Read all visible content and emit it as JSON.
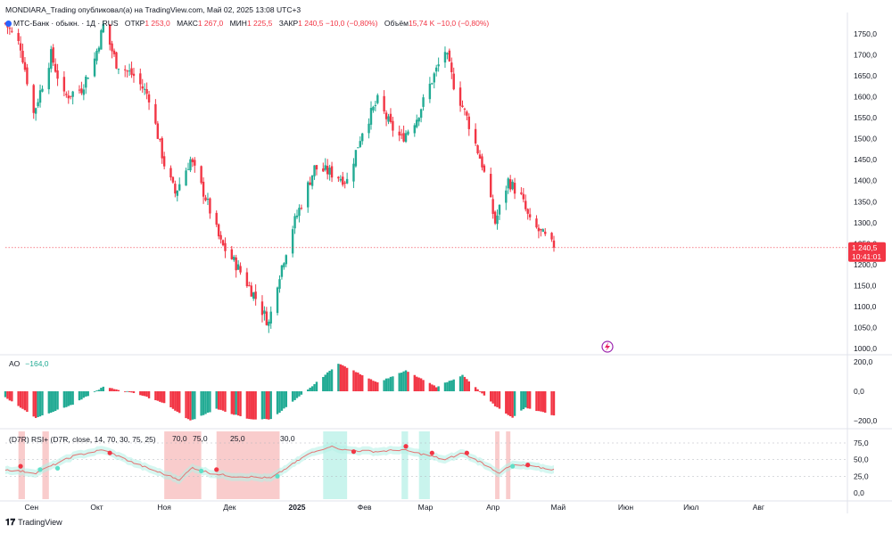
{
  "header": {
    "publisher_line": "MONDIARA_Trading опубликовал(а) на TradingView.com, Май 02, 2025 13:08 UTC+3"
  },
  "symbol": {
    "title": "МТС-Банк · обыкн. · 1Д · RUS",
    "open_label": "ОТКР",
    "open": "1 253,0",
    "high_label": "МАКС",
    "high": "1 267,0",
    "low_label": "МИН",
    "low": "1 225,5",
    "close_label": "ЗАКР",
    "close": "1 240,5",
    "change": "−10,0 (−0,80%)",
    "volume_label": "Объём",
    "volume": "15,74 K"
  },
  "last_price_tag": {
    "price": "1 240,5",
    "countdown": "10:41:01"
  },
  "ao_legend": {
    "name": "AO",
    "value": "−164,0"
  },
  "rsi_legend": {
    "text": "(D7R) RSI+ (D7R, close, 14, 70, 30, 75, 25)",
    "v1": "70,0",
    "v2": "75,0",
    "v3": "25,0",
    "v4": "30,0"
  },
  "footer": {
    "brand": "TradingView"
  },
  "colors": {
    "up": "#22ab94",
    "down": "#f23645",
    "rsi_line": "#e57373",
    "rsi_band_up": "#b2f0e6",
    "rsi_band_down": "#f7b6b6"
  },
  "chart_data": [
    {
      "type": "candlestick",
      "title": "МТС-Банк · обыкн. · 1Д · RUS",
      "ylim": [
        1000,
        1800
      ],
      "y_ticks": [
        "1750,0",
        "1700,0",
        "1650,0",
        "1600,0",
        "1550,0",
        "1500,0",
        "1450,0",
        "1400,0",
        "1350,0",
        "1300,0",
        "1250,0",
        "1200,0",
        "1150,0",
        "1100,0",
        "1050,0",
        "1000,0"
      ],
      "x_ticks": [
        "Сен",
        "Окт",
        "Ноя",
        "Дек",
        "2025",
        "Фев",
        "Мар",
        "Апр",
        "Май",
        "Июн",
        "Июл",
        "Авг"
      ],
      "last_price": 1240.5,
      "close_path": [
        {
          "x": "2024-08-20",
          "y": 1775
        },
        {
          "x": "2024-08-27",
          "y": 1720
        },
        {
          "x": "2024-09-02",
          "y": 1560
        },
        {
          "x": "2024-09-10",
          "y": 1700
        },
        {
          "x": "2024-09-16",
          "y": 1600
        },
        {
          "x": "2024-09-24",
          "y": 1620
        },
        {
          "x": "2024-09-30",
          "y": 1690
        },
        {
          "x": "2024-10-04",
          "y": 1770
        },
        {
          "x": "2024-10-10",
          "y": 1680
        },
        {
          "x": "2024-10-18",
          "y": 1650
        },
        {
          "x": "2024-10-25",
          "y": 1600
        },
        {
          "x": "2024-11-01",
          "y": 1440
        },
        {
          "x": "2024-11-06",
          "y": 1370
        },
        {
          "x": "2024-11-13",
          "y": 1450
        },
        {
          "x": "2024-11-20",
          "y": 1360
        },
        {
          "x": "2024-11-27",
          "y": 1250
        },
        {
          "x": "2024-12-04",
          "y": 1200
        },
        {
          "x": "2024-12-12",
          "y": 1130
        },
        {
          "x": "2024-12-19",
          "y": 1060
        },
        {
          "x": "2024-12-23",
          "y": 1160
        },
        {
          "x": "2024-12-30",
          "y": 1290
        },
        {
          "x": "2025-01-09",
          "y": 1430
        },
        {
          "x": "2025-01-16",
          "y": 1420
        },
        {
          "x": "2025-01-24",
          "y": 1400
        },
        {
          "x": "2025-01-31",
          "y": 1520
        },
        {
          "x": "2025-02-07",
          "y": 1590
        },
        {
          "x": "2025-02-13",
          "y": 1530
        },
        {
          "x": "2025-02-18",
          "y": 1500
        },
        {
          "x": "2025-02-25",
          "y": 1550
        },
        {
          "x": "2025-03-04",
          "y": 1640
        },
        {
          "x": "2025-03-10",
          "y": 1710
        },
        {
          "x": "2025-03-14",
          "y": 1630
        },
        {
          "x": "2025-03-20",
          "y": 1550
        },
        {
          "x": "2025-03-27",
          "y": 1440
        },
        {
          "x": "2025-04-02",
          "y": 1300
        },
        {
          "x": "2025-04-08",
          "y": 1400
        },
        {
          "x": "2025-04-14",
          "y": 1360
        },
        {
          "x": "2025-04-18",
          "y": 1300
        },
        {
          "x": "2025-04-24",
          "y": 1270
        },
        {
          "x": "2025-04-29",
          "y": 1240.5
        }
      ]
    },
    {
      "type": "bar",
      "title": "AO",
      "ylim": [
        -200,
        200
      ],
      "y_ticks": [
        "200,0",
        "0,0",
        "−200,0"
      ],
      "last_value": -164.0,
      "value_path": [
        {
          "x": "2024-08-20",
          "y": -40
        },
        {
          "x": "2024-09-03",
          "y": -180
        },
        {
          "x": "2024-09-20",
          "y": -90
        },
        {
          "x": "2024-10-04",
          "y": 30
        },
        {
          "x": "2024-10-18",
          "y": -10
        },
        {
          "x": "2024-11-01",
          "y": -80
        },
        {
          "x": "2024-11-13",
          "y": -200
        },
        {
          "x": "2024-11-25",
          "y": -120
        },
        {
          "x": "2024-12-10",
          "y": -190
        },
        {
          "x": "2024-12-20",
          "y": -190
        },
        {
          "x": "2025-01-06",
          "y": 10
        },
        {
          "x": "2025-01-20",
          "y": 190
        },
        {
          "x": "2025-02-07",
          "y": 60
        },
        {
          "x": "2025-02-20",
          "y": 140
        },
        {
          "x": "2025-03-06",
          "y": 30
        },
        {
          "x": "2025-03-18",
          "y": 110
        },
        {
          "x": "2025-04-02",
          "y": -100
        },
        {
          "x": "2025-04-10",
          "y": -180
        },
        {
          "x": "2025-04-16",
          "y": -110
        },
        {
          "x": "2025-04-29",
          "y": -164
        }
      ]
    },
    {
      "type": "line",
      "title": "(D7R) RSI+ (D7R, close, 14, 70, 30, 75, 25)",
      "ylim": [
        0,
        85
      ],
      "y_ticks": [
        "75,0",
        "50,0",
        "25,0",
        "0,0"
      ],
      "value_path": [
        {
          "x": "2024-08-20",
          "y": 35
        },
        {
          "x": "2024-09-03",
          "y": 30
        },
        {
          "x": "2024-09-20",
          "y": 55
        },
        {
          "x": "2024-10-04",
          "y": 65
        },
        {
          "x": "2024-10-18",
          "y": 45
        },
        {
          "x": "2024-11-01",
          "y": 28
        },
        {
          "x": "2024-11-08",
          "y": 20
        },
        {
          "x": "2024-11-14",
          "y": 38
        },
        {
          "x": "2024-11-22",
          "y": 30
        },
        {
          "x": "2024-12-02",
          "y": 25
        },
        {
          "x": "2024-12-12",
          "y": 24
        },
        {
          "x": "2024-12-20",
          "y": 22
        },
        {
          "x": "2025-01-06",
          "y": 58
        },
        {
          "x": "2025-01-16",
          "y": 70
        },
        {
          "x": "2025-01-24",
          "y": 64
        },
        {
          "x": "2025-02-07",
          "y": 62
        },
        {
          "x": "2025-02-18",
          "y": 65
        },
        {
          "x": "2025-03-04",
          "y": 55
        },
        {
          "x": "2025-03-10",
          "y": 50
        },
        {
          "x": "2025-03-18",
          "y": 60
        },
        {
          "x": "2025-03-27",
          "y": 45
        },
        {
          "x": "2025-04-04",
          "y": 30
        },
        {
          "x": "2025-04-10",
          "y": 42
        },
        {
          "x": "2025-04-18",
          "y": 40
        },
        {
          "x": "2025-04-29",
          "y": 35
        }
      ]
    }
  ]
}
